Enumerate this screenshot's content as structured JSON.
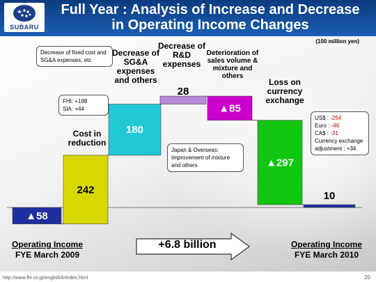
{
  "header": {
    "logo_text": "SUBARU",
    "title_line1": "Full Year : Analysis of Increase and Decrease",
    "title_line2": "in Operating Income Changes"
  },
  "unit": "(100 million yen)",
  "chart_data": {
    "type": "bar",
    "subtype": "waterfall",
    "categories": [
      "Operating Income FYE March 2009",
      "Cost in reduction",
      "Decrease of SG&A expenses and others",
      "Decrease of R&D expenses",
      "Deterioration of sales volume & mixture and others",
      "Loss on currency exchange",
      "Operating Income FYE March 2010"
    ],
    "values": [
      -58,
      242,
      180,
      28,
      -85,
      -297,
      10
    ],
    "value_labels": [
      "▲58",
      "242",
      "180",
      "28",
      "▲85",
      "▲297",
      "10"
    ],
    "colors": [
      "#1f2f9e",
      "#d8d800",
      "#22c8d4",
      "#b98ad9",
      "#cc00cc",
      "#11c611",
      "#1f2f9e"
    ],
    "ylim": [
      -70,
      400
    ]
  },
  "labels": {
    "cost_reduction": "Cost in reduction",
    "sga": "Decrease of SG&A expenses and others",
    "rnd": "Decrease of R&D expenses",
    "sales": "Deterioration of sales volume & mixture and others",
    "currency": "Loss on currency exchange"
  },
  "callouts": {
    "fixed_cost": "Decrease of fixed cost and SG&A expenses, etc",
    "fhi": "FHI: +198",
    "sia": "SIA: +44",
    "japan": "Japan & Overseas: Improvement of mixture and others",
    "usd_label": "US$ : ",
    "usd_value": "-254",
    "euro_label": "Euro : ",
    "euro_value": "-46",
    "cad_label": "CA$ : ",
    "cad_value": "-31",
    "adjustment": "Currency exchange adjustment : +34"
  },
  "bottom": {
    "left_line1": "Operating Income",
    "left_line2": "FYE March 2009",
    "middle": "+6.8 billion",
    "right_line1": "Operating Income",
    "right_line2": "FYE March 2010"
  },
  "footer": {
    "url": "http://www.fhi.co.jp/english/ir/index.html",
    "page": "20"
  }
}
